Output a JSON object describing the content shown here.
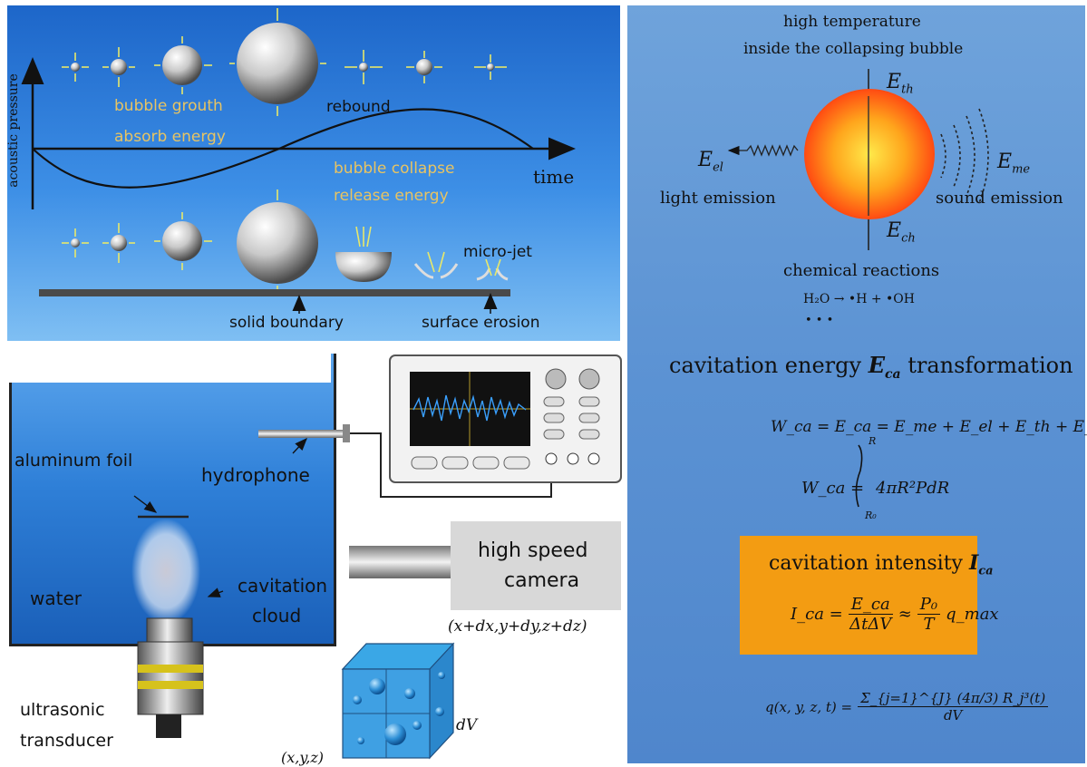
{
  "panel_a": {
    "axis_y_label": "acoustic pressure",
    "axis_x_label": "time",
    "growth_line1": "bubble grouth",
    "growth_line2": "absorb energy",
    "rebound": "rebound",
    "collapse_line1": "bubble collapse",
    "collapse_line2": "release  energy",
    "micro_jet": "micro-jet",
    "solid_boundary": "solid boundary",
    "surface_erosion": "surface erosion"
  },
  "panel_b": {
    "aluminum_foil": "aluminum foil",
    "hydrophone": "hydrophone",
    "cavitation_line1": "cavitation",
    "cavitation_line2": "cloud",
    "water": "water",
    "transducer_line1": "ultrasonic",
    "transducer_line2": "transducer",
    "camera_line1": "high speed",
    "camera_line2": "camera",
    "coord_far": "(x+dx,y+dy,z+dz)",
    "coord_near": "(x,y,z)",
    "volume": "dV"
  },
  "panel_c": {
    "high_temp_line1": "high temperature",
    "high_temp_line2": "inside the collapsing bubble",
    "e_th": "E",
    "e_th_sub": "th",
    "e_el": "E",
    "e_el_sub": "el",
    "e_me": "E",
    "e_me_sub": "me",
    "e_ch": "E",
    "e_ch_sub": "ch",
    "light_emission": "light emission",
    "sound_emission": "sound emission",
    "chemical_reactions": "chemical reactions",
    "reaction": "H₂O  →  •H + •OH",
    "ellipsis": "• • •",
    "transformation_pre": "cavitation energy ",
    "transformation_sym": "E",
    "transformation_sub": "ca",
    "transformation_post": " transformation",
    "eq1": "W_ca = E_ca = E_me + E_el + E_th + E_ch",
    "eq2_lhs": "W_ca =",
    "eq2_int_upper": "R",
    "eq2_int_lower": "R₀",
    "eq2_body": "4πR²PdR",
    "intensity_title_pre": "cavitation intensity ",
    "intensity_title_sym": "I",
    "intensity_title_sub": "ca",
    "intensity_lhs": "I_ca =",
    "intensity_frac1_num": "E_ca",
    "intensity_frac1_den": "ΔtΔV",
    "intensity_approx": "≈",
    "intensity_frac2_num": "P₀",
    "intensity_frac2_den": "T",
    "intensity_tail": "q_max",
    "q_lhs": "q(x, y, z, t) =",
    "q_num": "Σ_{j=1}^{J} (4π/3) R_j³(t)",
    "q_den": "dV"
  },
  "colors": {
    "panel_a_top": "#1d66c9",
    "panel_c_bg": "#5b92d3",
    "highlight_box": "#f39c12",
    "yellow_text": "#e8c462"
  }
}
